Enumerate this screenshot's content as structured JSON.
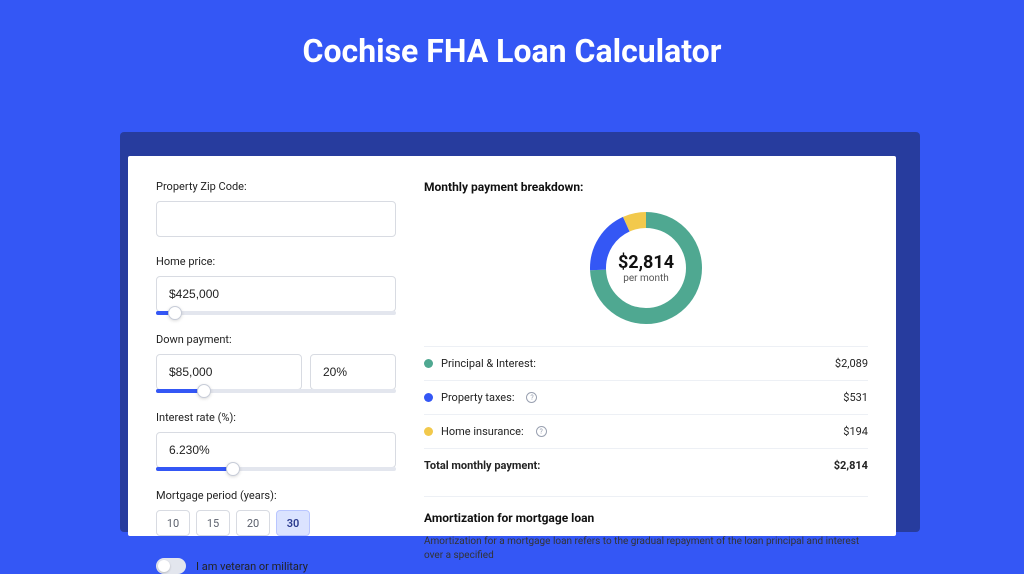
{
  "page": {
    "title": "Cochise FHA Loan Calculator",
    "background_color": "#3457f5",
    "card_shadow_color": "#273c9e"
  },
  "form": {
    "zip": {
      "label": "Property Zip Code:",
      "value": ""
    },
    "home_price": {
      "label": "Home price:",
      "value": "$425,000",
      "slider_pct": 8
    },
    "down_payment": {
      "label": "Down payment:",
      "value": "$85,000",
      "pct": "20%",
      "slider_pct": 20
    },
    "interest_rate": {
      "label": "Interest rate (%):",
      "value": "6.230%",
      "slider_pct": 32
    },
    "period": {
      "label": "Mortgage period (years):",
      "options": [
        "10",
        "15",
        "20",
        "30"
      ],
      "selected": "30"
    },
    "veteran": {
      "label": "I am veteran or military",
      "checked": false
    }
  },
  "breakdown": {
    "heading": "Monthly payment breakdown:",
    "donut": {
      "value_label": "$2,814",
      "sub_label": "per month",
      "slices": [
        {
          "key": "principal_interest",
          "color": "#4fa891",
          "value": 2089
        },
        {
          "key": "property_taxes",
          "color": "#3457f5",
          "value": 531
        },
        {
          "key": "home_insurance",
          "color": "#f2c94c",
          "value": 194
        }
      ],
      "ring_width": 16
    },
    "rows": [
      {
        "label": "Principal & Interest:",
        "color": "#4fa891",
        "amount": "$2,089",
        "info": false
      },
      {
        "label": "Property taxes:",
        "color": "#3457f5",
        "amount": "$531",
        "info": true
      },
      {
        "label": "Home insurance:",
        "color": "#f2c94c",
        "amount": "$194",
        "info": true
      }
    ],
    "total": {
      "label": "Total monthly payment:",
      "amount": "$2,814"
    }
  },
  "amortization": {
    "heading": "Amortization for mortgage loan",
    "body": "Amortization for a mortgage loan refers to the gradual repayment of the loan principal and interest over a specified"
  }
}
